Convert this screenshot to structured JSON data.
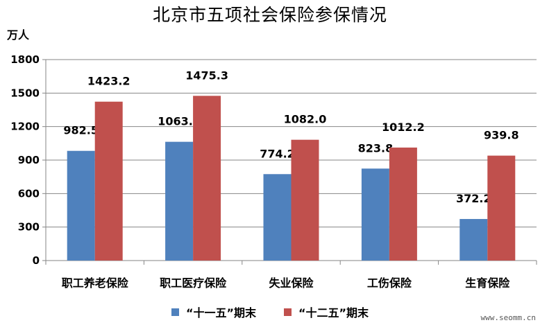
{
  "chart_data": {
    "type": "bar",
    "title": "北京市五项社会保险参保情况",
    "ylabel": "万人",
    "xlabel": "",
    "ylim": [
      0,
      1800
    ],
    "yticks": [
      0,
      300,
      600,
      900,
      1200,
      1500,
      1800
    ],
    "grid": true,
    "legend_position": "bottom",
    "categories": [
      "职工养老保险",
      "职工医疗保险",
      "失业保险",
      "工伤保险",
      "生育保险"
    ],
    "series": [
      {
        "name": "“十一五”期末",
        "color": "#4F81BD",
        "values": [
          982.5,
          1063.7,
          774.2,
          823.8,
          372.2
        ],
        "labels": [
          "982.5",
          "1063.7",
          "774.2",
          "823.8",
          "372.2"
        ]
      },
      {
        "name": "“十二五”期末",
        "color": "#C0504D",
        "values": [
          1423.2,
          1475.3,
          1082.0,
          1012.2,
          939.8
        ],
        "labels": [
          "1423.2",
          "1475.3",
          "1082.0",
          "1012.2",
          "939.8"
        ]
      }
    ]
  },
  "watermark": "www.seomm.cn"
}
